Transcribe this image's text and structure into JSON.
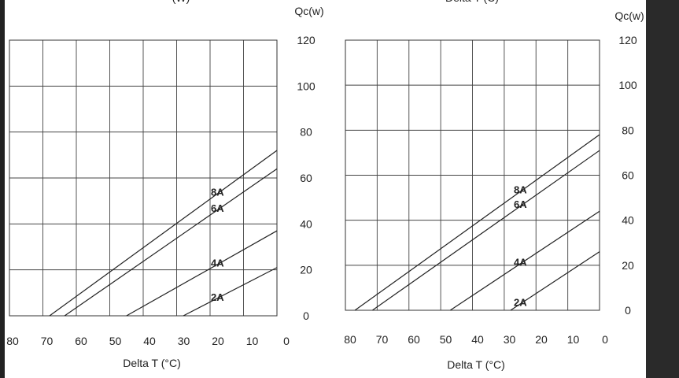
{
  "window": {
    "top_partial_text_left": "(W)",
    "top_partial_text_right": "Delta T (C)"
  },
  "chart_data": [
    {
      "type": "line",
      "title": "",
      "xlabel": "Delta T (°C)",
      "ylabel": "Qc(w)",
      "xlim": [
        80,
        0
      ],
      "ylim": [
        0,
        120
      ],
      "xticks": [
        "80",
        "70",
        "60",
        "50",
        "40",
        "30",
        "20",
        "10",
        "0"
      ],
      "yticks": [
        "0",
        "20",
        "40",
        "60",
        "80",
        "100",
        "120"
      ],
      "grid": true,
      "series": [
        {
          "name": "8A",
          "points": [
            [
              68,
              0
            ],
            [
              0,
              72
            ]
          ]
        },
        {
          "name": "6A",
          "points": [
            [
              63.5,
              0
            ],
            [
              0,
              64
            ]
          ]
        },
        {
          "name": "4A",
          "points": [
            [
              45,
              0
            ],
            [
              0,
              37
            ]
          ]
        },
        {
          "name": "2A",
          "points": [
            [
              28,
              0
            ],
            [
              0,
              21
            ]
          ]
        }
      ]
    },
    {
      "type": "line",
      "title": "",
      "xlabel": "Delta T (°C)",
      "ylabel": "Qc(w)",
      "xlim": [
        80,
        0
      ],
      "ylim": [
        0,
        120
      ],
      "xticks": [
        "80",
        "70",
        "60",
        "50",
        "40",
        "30",
        "20",
        "10",
        "0"
      ],
      "yticks": [
        "0",
        "20",
        "40",
        "60",
        "80",
        "100",
        "120"
      ],
      "grid": true,
      "series": [
        {
          "name": "8A",
          "points": [
            [
              77,
              0
            ],
            [
              0,
              78
            ]
          ]
        },
        {
          "name": "6A",
          "points": [
            [
              71.5,
              0
            ],
            [
              0,
              71
            ]
          ]
        },
        {
          "name": "4A",
          "points": [
            [
              47,
              0
            ],
            [
              0,
              44
            ]
          ]
        },
        {
          "name": "2A",
          "points": [
            [
              28,
              0
            ],
            [
              0,
              26
            ]
          ]
        }
      ]
    }
  ]
}
